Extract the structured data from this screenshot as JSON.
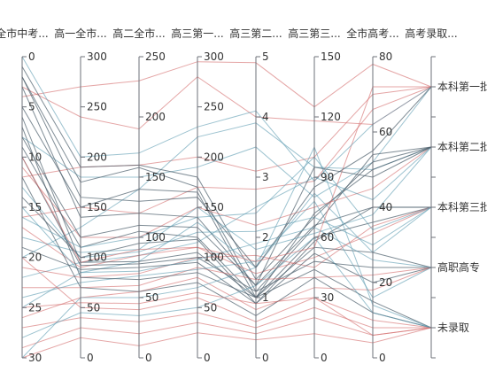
{
  "chart_data": {
    "type": "parallel",
    "colors": {
      "red": "#d46a6a",
      "teal": "#5b9bb0",
      "dark": "#4a5d69"
    },
    "axes": [
      {
        "name": "全市中考...",
        "type": "value",
        "min": 0,
        "max": 30,
        "inverse": true,
        "ticks": [
          0,
          5,
          10,
          15,
          20,
          25,
          30
        ],
        "tick_labels": [
          "0",
          "5",
          "10",
          "15",
          "20",
          "25",
          "30"
        ]
      },
      {
        "name": "高一全市...",
        "type": "value",
        "min": 0,
        "max": 300,
        "ticks": [
          0,
          50,
          100,
          150,
          200,
          250,
          300
        ],
        "tick_labels": [
          "0",
          "50",
          "100",
          "150",
          "200",
          "250",
          "300"
        ]
      },
      {
        "name": "高二全市...",
        "type": "value",
        "min": 0,
        "max": 250,
        "ticks": [
          0,
          50,
          100,
          150,
          200,
          250
        ],
        "tick_labels": [
          "0",
          "50",
          "100",
          "150",
          "200",
          "250"
        ]
      },
      {
        "name": "高三第一...",
        "type": "value",
        "min": 0,
        "max": 300,
        "ticks": [
          0,
          50,
          100,
          150,
          200,
          250,
          300
        ],
        "tick_labels": [
          "0",
          "50",
          "100",
          "150",
          "200",
          "250",
          "300"
        ]
      },
      {
        "name": "高三第二...",
        "type": "value",
        "min": 0,
        "max": 5,
        "ticks": [
          0,
          1,
          2,
          3,
          4,
          5
        ],
        "tick_labels": [
          "0",
          "1",
          "2",
          "3",
          "4",
          "5"
        ]
      },
      {
        "name": "高三第三...",
        "type": "value",
        "min": 0,
        "max": 150,
        "ticks": [
          0,
          30,
          60,
          90,
          120,
          150
        ],
        "tick_labels": [
          "0",
          "30",
          "60",
          "90",
          "120",
          "150"
        ]
      },
      {
        "name": "全市高考...",
        "type": "value",
        "min": 0,
        "max": 80,
        "ticks": [
          0,
          20,
          40,
          60,
          80
        ],
        "tick_labels": [
          "0",
          "20",
          "40",
          "60",
          "80"
        ]
      },
      {
        "name": "高考录取...",
        "type": "category",
        "categories": [
          "本科第一批",
          "本科第二批",
          "本科第三批",
          "高职高专",
          "未录取"
        ]
      }
    ],
    "series": [
      {
        "color": "red",
        "values": [
          3,
          240,
          190,
          280,
          4.0,
          118,
          62,
          0
        ]
      },
      {
        "color": "red",
        "values": [
          4,
          270,
          230,
          295,
          4.9,
          125,
          78,
          0
        ]
      },
      {
        "color": "red",
        "values": [
          12,
          190,
          160,
          200,
          3.1,
          100,
          70,
          0
        ]
      },
      {
        "color": "red",
        "values": [
          16,
          150,
          120,
          170,
          2.8,
          88,
          66,
          0
        ]
      },
      {
        "color": "teal",
        "values": [
          8,
          180,
          150,
          190,
          3.5,
          80,
          52,
          0
        ]
      },
      {
        "color": "teal",
        "values": [
          20,
          130,
          140,
          220,
          3.9,
          95,
          50,
          1
        ]
      },
      {
        "color": "dark",
        "values": [
          1,
          190,
          160,
          180,
          1.3,
          70,
          52,
          1
        ]
      },
      {
        "color": "dark",
        "values": [
          2,
          175,
          158,
          170,
          1.1,
          65,
          54,
          1
        ]
      },
      {
        "color": "dark",
        "values": [
          5,
          150,
          140,
          165,
          1.0,
          72,
          50,
          1
        ]
      },
      {
        "color": "red",
        "values": [
          11,
          120,
          100,
          150,
          2.2,
          75,
          45,
          1
        ]
      },
      {
        "color": "teal",
        "values": [
          18,
          105,
          90,
          150,
          1.8,
          62,
          38,
          1
        ]
      },
      {
        "color": "teal",
        "values": [
          22,
          95,
          85,
          115,
          2.5,
          90,
          42,
          1
        ]
      },
      {
        "color": "dark",
        "values": [
          3,
          140,
          120,
          140,
          1.2,
          66,
          40,
          2
        ]
      },
      {
        "color": "dark",
        "values": [
          9,
          110,
          105,
          120,
          1.0,
          60,
          36,
          2
        ]
      },
      {
        "color": "dark",
        "values": [
          14,
          100,
          95,
          118,
          0.9,
          58,
          40,
          2
        ]
      },
      {
        "color": "red",
        "values": [
          17,
          90,
          85,
          110,
          1.4,
          50,
          33,
          2
        ]
      },
      {
        "color": "red",
        "values": [
          21,
          80,
          70,
          100,
          1.7,
          45,
          35,
          2
        ]
      },
      {
        "color": "teal",
        "values": [
          13,
          100,
          88,
          125,
          2.1,
          70,
          30,
          2
        ]
      },
      {
        "color": "teal",
        "values": [
          25,
          85,
          80,
          135,
          1.5,
          82,
          28,
          2
        ]
      },
      {
        "color": "dark",
        "values": [
          6,
          95,
          80,
          105,
          1.0,
          55,
          28,
          3
        ]
      },
      {
        "color": "dark",
        "values": [
          10,
          92,
          78,
          100,
          1.1,
          48,
          24,
          3
        ]
      },
      {
        "color": "dark",
        "values": [
          19,
          88,
          75,
          95,
          0.9,
          52,
          20,
          3
        ]
      },
      {
        "color": "red",
        "values": [
          23,
          70,
          60,
          90,
          1.3,
          40,
          22,
          3
        ]
      },
      {
        "color": "red",
        "values": [
          26,
          60,
          55,
          80,
          0.8,
          35,
          18,
          3
        ]
      },
      {
        "color": "teal",
        "values": [
          15,
          85,
          72,
          98,
          1.9,
          65,
          26,
          3
        ]
      },
      {
        "color": "teal",
        "values": [
          24,
          75,
          68,
          88,
          1.6,
          78,
          16,
          3
        ]
      },
      {
        "color": "dark",
        "values": [
          7,
          80,
          65,
          85,
          1.0,
          44,
          15,
          4
        ]
      },
      {
        "color": "dark",
        "values": [
          12,
          70,
          55,
          75,
          0.7,
          40,
          12,
          4
        ]
      },
      {
        "color": "red",
        "values": [
          20,
          50,
          40,
          60,
          0.6,
          30,
          10,
          4
        ]
      },
      {
        "color": "red",
        "values": [
          27,
          40,
          30,
          45,
          0.5,
          25,
          8,
          4
        ]
      },
      {
        "color": "red",
        "values": [
          29,
          30,
          20,
          35,
          0.4,
          20,
          6,
          4
        ]
      },
      {
        "color": "red",
        "values": [
          30,
          20,
          10,
          25,
          0.3,
          12,
          4,
          4
        ]
      },
      {
        "color": "teal",
        "values": [
          28,
          45,
          35,
          50,
          1.2,
          60,
          12,
          4
        ]
      },
      {
        "color": "teal",
        "values": [
          30,
          60,
          50,
          70,
          1.5,
          105,
          14,
          4
        ]
      },
      {
        "color": "red",
        "values": [
          10,
          95,
          90,
          110,
          1.6,
          55,
          72,
          0
        ]
      },
      {
        "color": "dark",
        "values": [
          2,
          160,
          130,
          160,
          1.5,
          85,
          55,
          0
        ]
      },
      {
        "color": "teal",
        "values": [
          0,
          200,
          170,
          230,
          4.1,
          88,
          62,
          0
        ]
      },
      {
        "color": "dark",
        "values": [
          8,
          120,
          110,
          130,
          1.2,
          95,
          48,
          1
        ]
      },
      {
        "color": "red",
        "values": [
          25,
          55,
          45,
          65,
          0.9,
          30,
          6,
          4
        ]
      },
      {
        "color": "teal",
        "values": [
          16,
          110,
          100,
          140,
          2.4,
          100,
          34,
          2
        ]
      }
    ]
  }
}
